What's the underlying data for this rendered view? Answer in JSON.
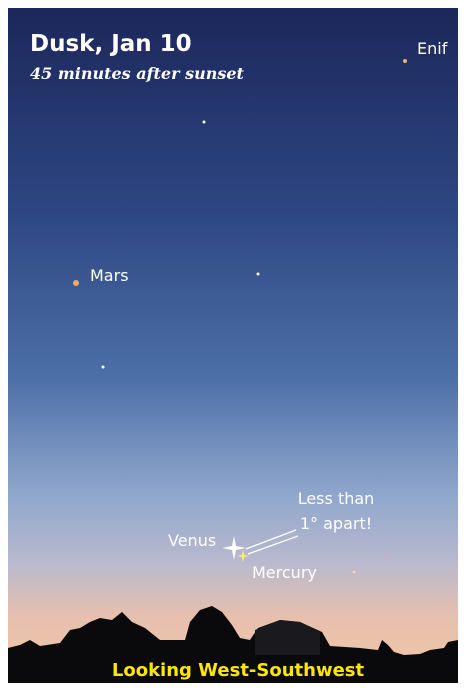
{
  "header": {
    "title": "Dusk, Jan 10",
    "subtitle": "45 minutes after sunset"
  },
  "labels": {
    "enif": "Enif",
    "mars": "Mars",
    "venus": "Venus",
    "mercury": "Mercury"
  },
  "annotation": {
    "lines": [
      "Less than",
      "1° apart!"
    ]
  },
  "footer": "Looking West-Southwest"
}
